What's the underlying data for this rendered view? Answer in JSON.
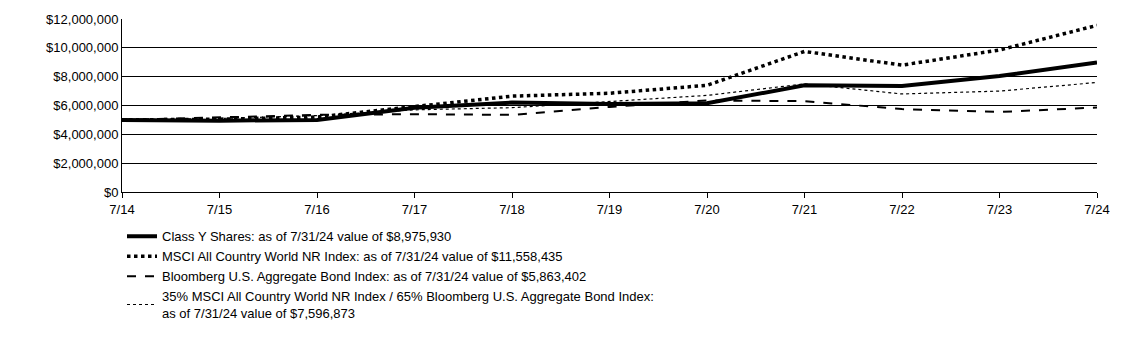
{
  "chart_data": {
    "type": "line",
    "categories": [
      "7/14",
      "7/15",
      "7/16",
      "7/17",
      "7/18",
      "7/19",
      "7/20",
      "7/21",
      "7/22",
      "7/23",
      "7/24"
    ],
    "series": [
      {
        "name": "Class Y Shares: as of 7/31/24 value of $8,975,930",
        "color": "#000000",
        "line_style": "solid",
        "values": [
          5000000,
          4950000,
          5000000,
          5850000,
          6200000,
          6100000,
          6150000,
          7400000,
          7350000,
          8050000,
          8975930
        ]
      },
      {
        "name": "MSCI All Country World NR Index: as of 7/31/24 value of $11,558,435",
        "color": "#000000",
        "line_style": "dot",
        "values": [
          5000000,
          5050000,
          5200000,
          5950000,
          6650000,
          6850000,
          7400000,
          9750000,
          8800000,
          9850000,
          11558435
        ]
      },
      {
        "name": "Bloomberg U.S. Aggregate Bond Index: as of 7/31/24 value of $5,863,402",
        "color": "#000000",
        "line_style": "dash",
        "values": [
          5000000,
          5150000,
          5350000,
          5400000,
          5350000,
          5900000,
          6350000,
          6300000,
          5750000,
          5550000,
          5863402
        ]
      },
      {
        "name": "35% MSCI All Country World NR Index / 65% Bloomberg U.S. Aggregate Bond Index:\nas of 7/31/24 value of $7,596,873",
        "color": "#000000",
        "line_style": "dot",
        "values": [
          5000000,
          5100000,
          5300000,
          5700000,
          5850000,
          6250000,
          6700000,
          7500000,
          6800000,
          7000000,
          7596873
        ]
      }
    ],
    "ylim": [
      0,
      12000000
    ],
    "yticks": [
      {
        "value": 0,
        "label": "$0"
      },
      {
        "value": 2000000,
        "label": "$2,000,000"
      },
      {
        "value": 4000000,
        "label": "$4,000,000"
      },
      {
        "value": 6000000,
        "label": "$6,000,000"
      },
      {
        "value": 8000000,
        "label": "$8,000,000"
      },
      {
        "value": 10000000,
        "label": "$10,000,000"
      },
      {
        "value": 12000000,
        "label": "$12,000,000"
      }
    ],
    "grid": true,
    "legend": "bottom left"
  }
}
